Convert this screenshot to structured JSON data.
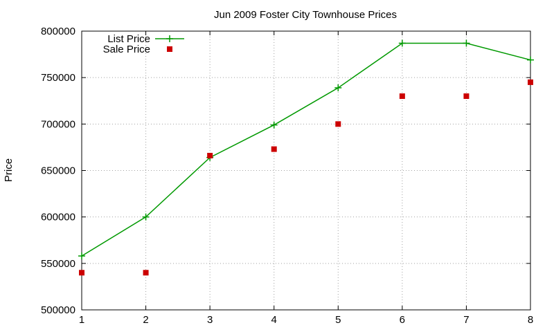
{
  "chart_data": {
    "type": "line",
    "title": "Jun 2009 Foster City Townhouse Prices",
    "xlabel": "",
    "ylabel": "Price",
    "x": [
      1,
      2,
      3,
      4,
      5,
      6,
      7,
      8
    ],
    "xlim": [
      1,
      8
    ],
    "ylim": [
      500000,
      800000
    ],
    "xticks": [
      1,
      2,
      3,
      4,
      5,
      6,
      7,
      8
    ],
    "yticks": [
      500000,
      550000,
      600000,
      650000,
      700000,
      750000,
      800000
    ],
    "grid": true,
    "legend_position": "top-left",
    "series": [
      {
        "name": "List Price",
        "style": "linespoints",
        "marker": "plus",
        "color": "#009900",
        "values": [
          558000,
          600000,
          664000,
          699000,
          739000,
          787000,
          787000,
          769000
        ]
      },
      {
        "name": "Sale Price",
        "style": "points",
        "marker": "square",
        "color": "#cc0000",
        "values": [
          540000,
          540000,
          666000,
          673000,
          700000,
          730000,
          730000,
          745000
        ]
      }
    ]
  }
}
